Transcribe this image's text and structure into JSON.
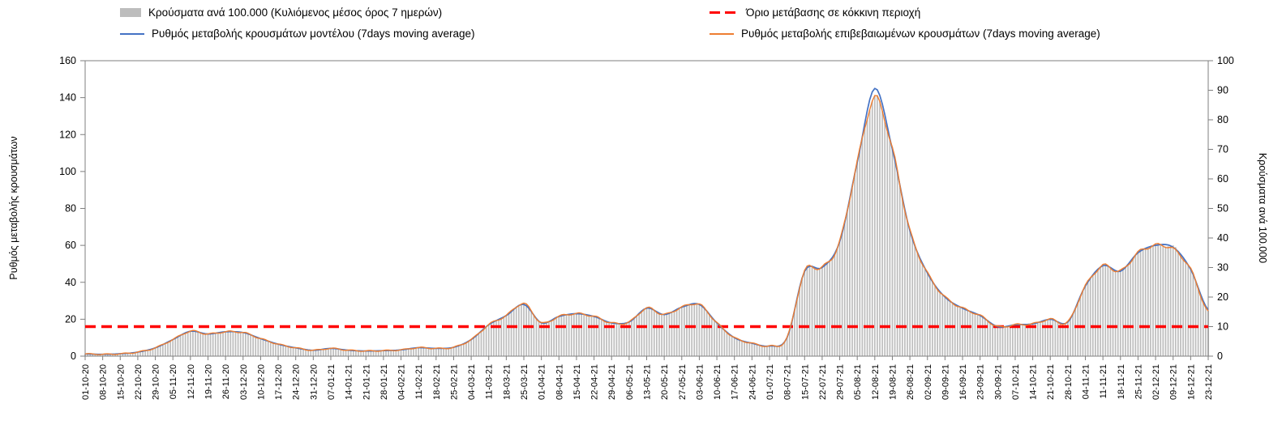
{
  "legend": {
    "bars_label": "Κρούσματα ανά 100.000 (Κυλιόμενος μέσος όρος 7 ημερών)",
    "threshold_label": "Όριο μετάβασης σε κόκκινη περιοχή",
    "model_label": "Ρυθμός μεταβολής κρουσμάτων μοντέλου (7days moving average)",
    "confirmed_label": "Ρυθμός μεταβολής επιβεβαιωμένων κρουσμάτων (7days moving average)"
  },
  "axes": {
    "left_label": "Ρυθμός μεταβολής κρουσμάτων",
    "right_label": "Κρούσματα ανά 100.000",
    "left_ticks": [
      0,
      20,
      40,
      60,
      80,
      100,
      120,
      140,
      160
    ],
    "right_ticks": [
      0,
      10,
      20,
      30,
      40,
      50,
      60,
      70,
      80,
      90,
      100
    ]
  },
  "colors": {
    "bars": "#bdbdbd",
    "model_line": "#4472C4",
    "confirmed_line": "#ED7D31",
    "threshold": "#ff0000",
    "axis": "#7f7f7f",
    "text": "#000000"
  },
  "chart_data": {
    "type": "bar+line",
    "title": "",
    "xlabel": "",
    "left_ylabel": "Ρυθμός μεταβολής κρουσμάτων",
    "right_ylabel": "Κρούσματα ανά 100.000",
    "left_ylim": [
      0,
      160
    ],
    "right_ylim": [
      0,
      100
    ],
    "legend_position": "top",
    "grid": false,
    "x_weekly": [
      "01-10-20",
      "08-10-20",
      "15-10-20",
      "22-10-20",
      "29-10-20",
      "05-11-20",
      "12-11-20",
      "19-11-20",
      "26-11-20",
      "03-12-20",
      "10-12-20",
      "17-12-20",
      "24-12-20",
      "31-12-20",
      "07-01-21",
      "14-01-21",
      "21-01-21",
      "28-01-21",
      "04-02-21",
      "11-02-21",
      "18-02-21",
      "25-02-21",
      "04-03-21",
      "11-03-21",
      "18-03-21",
      "25-03-21",
      "01-04-21",
      "08-04-21",
      "15-04-21",
      "22-04-21",
      "29-04-21",
      "06-05-21",
      "13-05-21",
      "20-05-21",
      "27-05-21",
      "03-06-21",
      "10-06-21",
      "17-06-21",
      "24-06-21",
      "01-07-21",
      "08-07-21",
      "15-07-21",
      "22-07-21",
      "29-07-21",
      "05-08-21",
      "12-08-21",
      "19-08-21",
      "26-08-21",
      "02-09-21",
      "09-09-21",
      "16-09-21",
      "23-09-21",
      "30-09-21",
      "07-10-21",
      "14-10-21",
      "21-10-21",
      "28-10-21",
      "04-11-21",
      "11-11-21",
      "18-11-21",
      "25-11-21",
      "02-12-21",
      "09-12-21",
      "16-12-21",
      "23-12-21"
    ],
    "series": [
      {
        "name": "Κρούσματα ανά 100.000 (Κυλιόμενος μέσος όρος 7 ημερών)",
        "type": "bar",
        "axis": "right",
        "color": "#bdbdbd",
        "values": [
          0.8,
          0.6,
          0.8,
          1.4,
          2.8,
          5.6,
          8.4,
          7.5,
          8.3,
          8.0,
          5.9,
          4.1,
          2.8,
          2.0,
          2.6,
          2.0,
          1.8,
          1.9,
          2.1,
          2.9,
          2.6,
          3.0,
          5.6,
          10.6,
          13.8,
          17.8,
          11.3,
          13.4,
          14.4,
          13.4,
          11.3,
          11.6,
          16.3,
          14.1,
          16.6,
          17.5,
          11.3,
          6.3,
          4.4,
          3.4,
          6.3,
          28.8,
          30.0,
          38.8,
          65.6,
          87.5,
          70.0,
          42.5,
          28.1,
          20.0,
          16.3,
          13.8,
          10.0,
          10.6,
          10.9,
          12.5,
          11.6,
          23.8,
          30.6,
          28.8,
          35.0,
          37.5,
          36.9,
          29.4,
          15.0
        ]
      },
      {
        "name": "Ρυθμός μεταβολής κρουσμάτων μοντέλου (7days moving average)",
        "type": "line",
        "axis": "left",
        "color": "#4472C4",
        "values": [
          1.2,
          1.0,
          1.3,
          2.2,
          4.5,
          9.0,
          13.5,
          12.0,
          13.2,
          12.8,
          9.5,
          6.5,
          4.5,
          3.2,
          4.2,
          3.2,
          2.8,
          3.0,
          3.4,
          4.6,
          4.2,
          4.8,
          9.0,
          17.0,
          22.0,
          28.0,
          18.0,
          21.5,
          23.0,
          21.5,
          18.0,
          18.5,
          26.0,
          22.5,
          26.5,
          28.0,
          18.0,
          10.0,
          7.0,
          5.5,
          10.0,
          46.0,
          48.0,
          62.0,
          105.0,
          145.0,
          112.0,
          68.0,
          45.0,
          32.0,
          26.0,
          22.0,
          16.0,
          17.0,
          17.5,
          20.0,
          18.5,
          38.0,
          49.0,
          46.0,
          56.0,
          60.0,
          59.0,
          47.0,
          25.0
        ]
      },
      {
        "name": "Ρυθμός μεταβολής επιβεβαιωμένων κρουσμάτων (7days moving average)",
        "type": "line",
        "axis": "left",
        "color": "#ED7D31",
        "values": [
          1.2,
          1.0,
          1.3,
          2.2,
          4.5,
          9.0,
          13.5,
          12.0,
          13.2,
          12.8,
          9.5,
          6.5,
          4.5,
          3.2,
          4.2,
          3.2,
          2.8,
          3.0,
          3.4,
          4.6,
          4.2,
          4.8,
          9.0,
          17.0,
          22.0,
          28.5,
          18.0,
          21.5,
          23.0,
          21.5,
          18.0,
          18.5,
          26.0,
          22.5,
          26.5,
          28.0,
          18.0,
          10.0,
          7.0,
          5.5,
          10.0,
          46.0,
          48.0,
          62.0,
          105.0,
          140.0,
          112.0,
          68.0,
          45.0,
          32.0,
          26.0,
          22.0,
          16.0,
          17.0,
          17.5,
          20.0,
          18.5,
          38.0,
          49.0,
          46.0,
          56.0,
          60.0,
          58.0,
          47.0,
          24.0
        ]
      },
      {
        "name": "Όριο μετάβασης σε κόκκινη περιοχή",
        "type": "threshold",
        "axis": "right",
        "value": 10
      }
    ]
  }
}
